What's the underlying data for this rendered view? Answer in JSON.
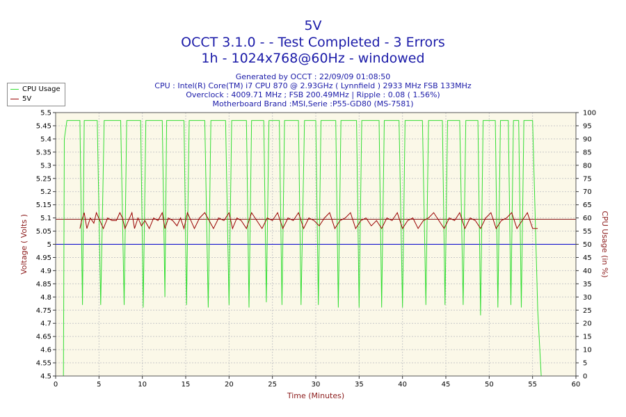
{
  "header": {
    "title": "5V",
    "subtitle": "OCCT 3.1.0 -  - Test Completed - 3 Errors",
    "subtitle2": "1h - 1024x768@60Hz - windowed",
    "generated": "Generated by OCCT : 22/09/09 01:08:50",
    "cpu": "CPU : Intel(R) Core(TM) i7 CPU 870 @ 2.93GHz ( Lynnfield ) 2933 MHz FSB 133MHz",
    "overclock": "Overclock : 4009.71 MHz ; FSB 200.49MHz | Ripple : 0.08 ( 1.56%)",
    "motherboard": "Motherboard Brand :MSI,Serie :P55-GD80 (MS-7581)"
  },
  "colors": {
    "title": "#1a1aa8",
    "axis_label": "#8b1a1a",
    "plot_bg": "#fbf8e8",
    "grid": "#c8c8c8",
    "cpu_line": "#33dd33",
    "volt_line": "#990000",
    "nominal_line": "#0000cc",
    "upper_line": "#8b1a1a"
  },
  "chart_data": {
    "type": "line",
    "xlabel": "Time (Minutes)",
    "ylabel": "Voltage ( Volts )",
    "y2label": "CPU Usage (in %)",
    "xlim": [
      0,
      60
    ],
    "ylim": [
      4.5,
      5.5
    ],
    "y2lim": [
      0,
      100
    ],
    "x_ticks": [
      "0",
      "5",
      "10",
      "15",
      "20",
      "25",
      "30",
      "35",
      "40",
      "45",
      "50",
      "55",
      "60"
    ],
    "y_ticks": [
      "4.5",
      "4.55",
      "4.6",
      "4.65",
      "4.7",
      "4.75",
      "4.8",
      "4.85",
      "4.9",
      "4.95",
      "5",
      "5.05",
      "5.1",
      "5.15",
      "5.2",
      "5.25",
      "5.3",
      "5.35",
      "5.4",
      "5.45",
      "5.5"
    ],
    "y2_ticks": [
      "0",
      "5",
      "10",
      "15",
      "20",
      "25",
      "30",
      "35",
      "40",
      "45",
      "50",
      "55",
      "60",
      "65",
      "70",
      "75",
      "80",
      "85",
      "90",
      "95",
      "100"
    ],
    "grid": true,
    "legend": "top-left, outside plot",
    "series": [
      {
        "name": "CPU Usage",
        "axis": "right",
        "x": [
          0.9,
          1.0,
          1.3,
          2.8,
          3.1,
          3.3,
          4.8,
          5.2,
          5.6,
          7.5,
          7.9,
          8.2,
          9.8,
          10.1,
          10.4,
          12.3,
          12.6,
          12.8,
          14.8,
          15.1,
          15.4,
          17.2,
          17.6,
          17.9,
          19.6,
          20.0,
          20.3,
          22.0,
          22.3,
          22.6,
          24.0,
          24.3,
          24.6,
          25.8,
          26.1,
          26.4,
          28.0,
          28.3,
          28.7,
          30.0,
          30.3,
          30.6,
          32.3,
          32.6,
          32.9,
          34.7,
          35.0,
          35.3,
          37.3,
          37.6,
          37.9,
          39.6,
          40.0,
          40.3,
          42.3,
          42.7,
          43.0,
          44.6,
          44.9,
          45.2,
          46.6,
          47.0,
          47.3,
          48.7,
          49.0,
          49.3,
          50.7,
          51.0,
          51.3,
          52.2,
          52.5,
          52.8,
          53.4,
          53.7,
          54.0,
          55.0,
          55.6,
          56.0
        ],
        "values": [
          0,
          90,
          97,
          97,
          27,
          97,
          97,
          27,
          97,
          97,
          27,
          97,
          97,
          26,
          97,
          97,
          30,
          97,
          97,
          27,
          97,
          97,
          26,
          97,
          97,
          27,
          97,
          97,
          26,
          97,
          97,
          28,
          97,
          97,
          27,
          97,
          97,
          27,
          97,
          97,
          27,
          97,
          97,
          26,
          97,
          97,
          26,
          97,
          97,
          26,
          97,
          97,
          26,
          97,
          97,
          27,
          97,
          97,
          27,
          97,
          97,
          27,
          97,
          97,
          23,
          97,
          97,
          26,
          97,
          97,
          27,
          97,
          97,
          26,
          97,
          97,
          25,
          0
        ]
      },
      {
        "name": "5V",
        "axis": "left",
        "x": [
          2.8,
          3.0,
          3.3,
          3.6,
          4.0,
          4.4,
          4.7,
          5.1,
          5.5,
          6.0,
          6.5,
          7.0,
          7.4,
          7.7,
          8.0,
          8.4,
          8.8,
          9.1,
          9.5,
          9.9,
          10.3,
          10.8,
          11.3,
          11.8,
          12.3,
          12.6,
          13.0,
          13.5,
          14.0,
          14.4,
          14.8,
          15.2,
          15.6,
          16.0,
          16.6,
          17.2,
          17.7,
          18.2,
          18.8,
          19.4,
          20.0,
          20.4,
          20.9,
          21.4,
          22.0,
          22.6,
          23.2,
          23.8,
          24.4,
          25.0,
          25.6,
          26.2,
          26.8,
          27.4,
          28.0,
          28.6,
          29.2,
          29.8,
          30.4,
          31.0,
          31.6,
          32.2,
          32.8,
          33.4,
          34.0,
          34.6,
          35.2,
          35.8,
          36.4,
          37.0,
          37.6,
          38.2,
          38.8,
          39.4,
          40.0,
          40.6,
          41.2,
          41.8,
          42.4,
          43.0,
          43.6,
          44.2,
          44.8,
          45.4,
          46.0,
          46.6,
          47.2,
          47.8,
          48.4,
          49.0,
          49.6,
          50.2,
          50.8,
          51.4,
          52.0,
          52.6,
          53.2,
          53.8,
          54.4,
          55.0,
          55.6
        ],
        "values": [
          5.06,
          5.09,
          5.12,
          5.06,
          5.1,
          5.08,
          5.12,
          5.09,
          5.06,
          5.1,
          5.09,
          5.09,
          5.12,
          5.1,
          5.06,
          5.09,
          5.12,
          5.06,
          5.1,
          5.07,
          5.09,
          5.06,
          5.1,
          5.09,
          5.12,
          5.06,
          5.1,
          5.09,
          5.07,
          5.1,
          5.06,
          5.12,
          5.09,
          5.06,
          5.1,
          5.12,
          5.09,
          5.06,
          5.1,
          5.09,
          5.12,
          5.06,
          5.1,
          5.09,
          5.06,
          5.12,
          5.09,
          5.06,
          5.1,
          5.09,
          5.12,
          5.06,
          5.1,
          5.09,
          5.12,
          5.06,
          5.1,
          5.09,
          5.07,
          5.1,
          5.12,
          5.06,
          5.09,
          5.1,
          5.12,
          5.06,
          5.09,
          5.1,
          5.07,
          5.09,
          5.06,
          5.1,
          5.09,
          5.12,
          5.06,
          5.09,
          5.1,
          5.06,
          5.09,
          5.1,
          5.12,
          5.09,
          5.06,
          5.1,
          5.09,
          5.12,
          5.06,
          5.1,
          5.09,
          5.06,
          5.1,
          5.12,
          5.06,
          5.09,
          5.1,
          5.12,
          5.06,
          5.09,
          5.12,
          5.06,
          5.06
        ]
      }
    ],
    "reference_lines": [
      {
        "value": 5.0,
        "axis": "left"
      },
      {
        "value": 5.095,
        "axis": "left"
      }
    ]
  }
}
